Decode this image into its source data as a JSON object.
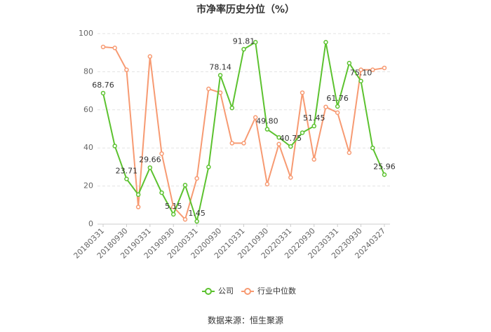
{
  "chart_data": {
    "type": "line",
    "title": "市净率历史分位（%）",
    "categories": [
      "20180331",
      null,
      "20180930",
      null,
      "20190331",
      null,
      "20190930",
      null,
      "20200331",
      null,
      "20200930",
      null,
      "20210331",
      null,
      "20210930",
      null,
      "20220331",
      null,
      "20220930",
      null,
      "20230331",
      null,
      "20230930",
      null,
      "20240327"
    ],
    "series": [
      {
        "name": "公司",
        "color": "#5cc22f",
        "values": [
          68.76,
          41,
          23.71,
          15.5,
          29.66,
          16.5,
          5.15,
          20.5,
          1.45,
          30,
          78.14,
          61,
          91.81,
          95.5,
          49.8,
          45.5,
          40.75,
          48,
          51.45,
          95.5,
          61.76,
          84.5,
          75.1,
          40,
          25.96
        ],
        "value_labels": [
          "68.76",
          null,
          "23.71",
          null,
          "29.66",
          null,
          "5.15",
          null,
          "1.45",
          null,
          "78.14",
          null,
          "91.81",
          null,
          "49.80",
          null,
          "40.75",
          null,
          "51.45",
          null,
          "61.76",
          null,
          "75.10",
          null,
          "25.96"
        ]
      },
      {
        "name": "行业中位数",
        "color": "#f79a72",
        "values": [
          93,
          92.5,
          81,
          9,
          88,
          37,
          9,
          2.5,
          24,
          71,
          69,
          42.5,
          42.5,
          56,
          21,
          42,
          24.5,
          69,
          34,
          61.5,
          58.5,
          37.5,
          81,
          81,
          82
        ]
      }
    ],
    "ylim": [
      0,
      100
    ],
    "yticks": [
      0,
      20,
      40,
      60,
      80,
      100
    ],
    "grid": true,
    "legend": "bottom",
    "source": "数据来源：恒生聚源"
  }
}
